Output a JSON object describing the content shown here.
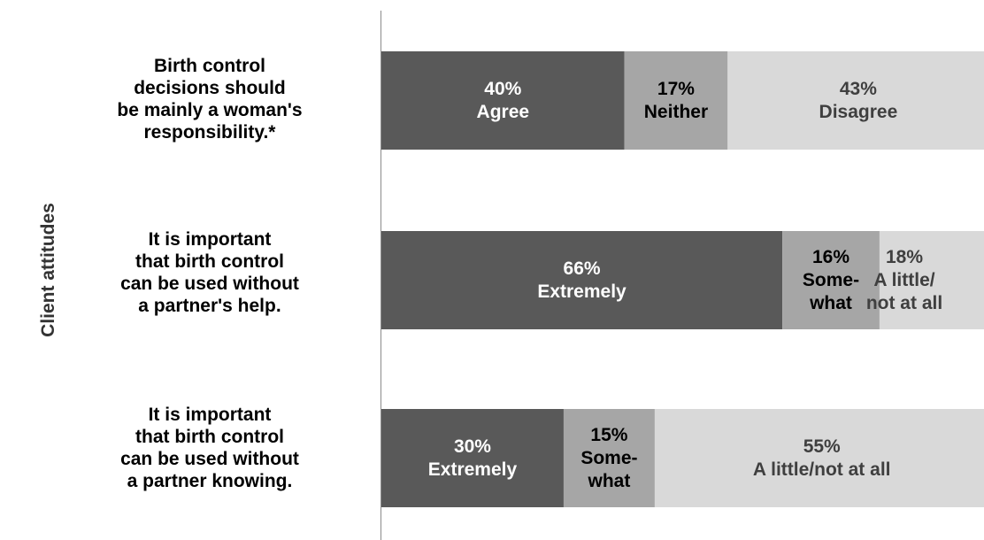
{
  "y_axis_title": "Client attitudes",
  "colors": {
    "dark": "#595959",
    "mid": "#a6a6a6",
    "light": "#d9d9d9"
  },
  "chart_data": {
    "type": "bar",
    "orientation": "horizontal",
    "stacked": true,
    "percent": true,
    "xlim": [
      0,
      100
    ],
    "categories": [
      "Birth control decisions should be mainly a woman's responsibility.*",
      "It is important that birth control can be used without a partner's help.",
      "It is important that birth control can be used without a partner knowing."
    ],
    "category_lines": [
      [
        "Birth control",
        "decisions should",
        "be mainly a woman's",
        "responsibility.*"
      ],
      [
        "It is important",
        "that birth control",
        "can be used without",
        "a partner's help."
      ],
      [
        "It is important",
        "that birth control",
        "can be used without",
        "a partner knowing."
      ]
    ],
    "bars": [
      {
        "segments": [
          {
            "value": 40,
            "label_lines": [
              "40%",
              "Agree"
            ],
            "color": "dark"
          },
          {
            "value": 17,
            "label_lines": [
              "17%",
              "Neither"
            ],
            "color": "mid"
          },
          {
            "value": 43,
            "label_lines": [
              "43%",
              "Disagree"
            ],
            "color": "light"
          }
        ]
      },
      {
        "segments": [
          {
            "value": 66,
            "label_lines": [
              "66%",
              "Extremely"
            ],
            "color": "dark"
          },
          {
            "value": 16,
            "label_lines": [
              "16%",
              "Some-",
              "what"
            ],
            "color": "mid"
          },
          {
            "value": 18,
            "label_lines": [
              "18%",
              "A little/",
              "not at all"
            ],
            "color": "light"
          }
        ]
      },
      {
        "segments": [
          {
            "value": 30,
            "label_lines": [
              "30%",
              "Extremely"
            ],
            "color": "dark"
          },
          {
            "value": 15,
            "label_lines": [
              "15%",
              "Some-",
              "what"
            ],
            "color": "mid"
          },
          {
            "value": 55,
            "label_lines": [
              "55%",
              "A little/not at all"
            ],
            "color": "light"
          }
        ]
      }
    ]
  }
}
